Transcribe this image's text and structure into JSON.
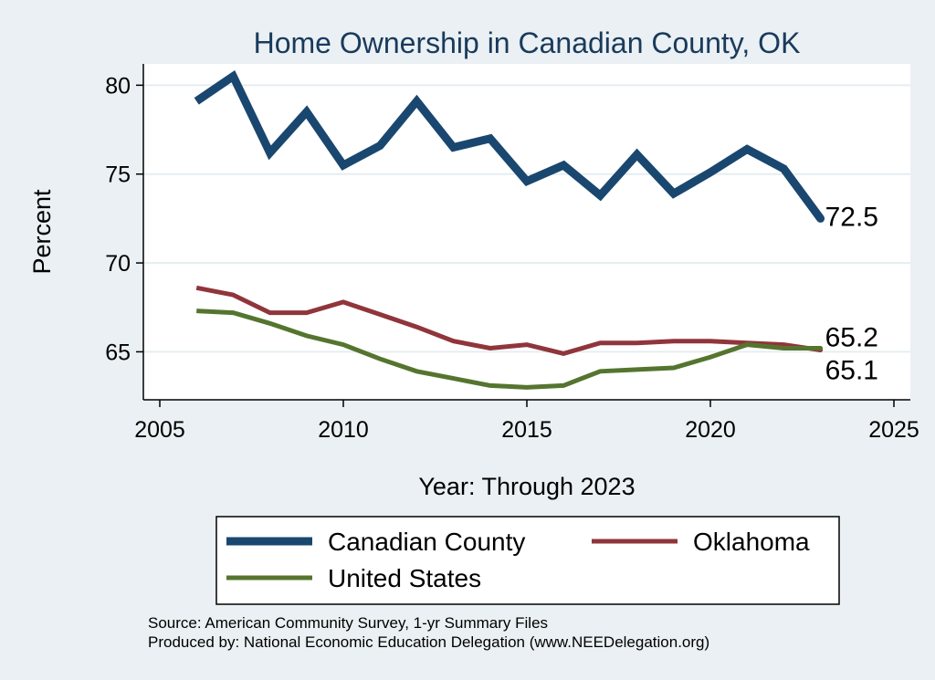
{
  "chart_data": {
    "type": "line",
    "title": "Home Ownership in Canadian County, OK",
    "xlabel": "Year: Through 2023",
    "ylabel": "Percent",
    "xlim": [
      2005,
      2025
    ],
    "ylim": [
      62.3,
      81.2
    ],
    "x_ticks": [
      2005,
      2010,
      2015,
      2020,
      2025
    ],
    "y_ticks": [
      65,
      70,
      75,
      80
    ],
    "grid": true,
    "legend_position": "bottom",
    "x": [
      2006,
      2007,
      2008,
      2009,
      2010,
      2011,
      2012,
      2013,
      2014,
      2015,
      2016,
      2017,
      2018,
      2019,
      2020,
      2021,
      2022,
      2023
    ],
    "series": [
      {
        "name": "Canadian County",
        "color": "#1a476f",
        "values": [
          79.1,
          80.5,
          76.2,
          78.5,
          75.5,
          76.6,
          79.1,
          76.5,
          77.0,
          74.6,
          75.5,
          73.8,
          76.1,
          73.9,
          75.1,
          76.4,
          75.3,
          72.5
        ],
        "end_label": "72.5"
      },
      {
        "name": "Oklahoma",
        "color": "#90353b",
        "values": [
          68.6,
          68.2,
          67.2,
          67.2,
          67.8,
          67.1,
          66.4,
          65.6,
          65.2,
          65.4,
          64.9,
          65.5,
          65.5,
          65.6,
          65.6,
          65.5,
          65.4,
          65.1
        ],
        "end_label": "65.1"
      },
      {
        "name": "United States",
        "color": "#55752f",
        "values": [
          67.3,
          67.2,
          66.6,
          65.9,
          65.4,
          64.6,
          63.9,
          63.5,
          63.1,
          63.0,
          63.1,
          63.9,
          64.0,
          64.1,
          64.7,
          65.4,
          65.2,
          65.2
        ],
        "end_label": "65.2"
      }
    ],
    "source_lines": [
      "Source: American Community Survey, 1-yr Summary Files",
      "Produced by: National Economic Education Delegation (www.NEEDelegation.org)"
    ]
  }
}
